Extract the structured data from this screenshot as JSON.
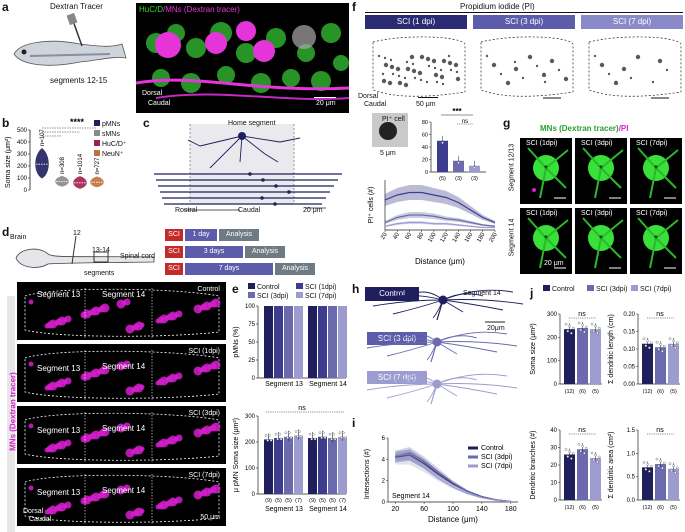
{
  "panels": {
    "a": {
      "letter": "a",
      "tracer": "Dextran Tracer",
      "segments": "segments 12-15",
      "micro_title_1": "HuC/D",
      "micro_title_2": "/MNs (Dextran tracer)",
      "dorsal": "Dorsal",
      "caudal": "Caudal",
      "scale": "20 μm"
    },
    "b": {
      "letter": "b",
      "ylabel": "Soma size (μm²)",
      "sig": "****",
      "n_labels": [
        "n=107",
        "n=308",
        "n=1014",
        "n=727"
      ],
      "legend": [
        "pMNs",
        "sMNs",
        "HuC/D⁺",
        "NeuN⁺"
      ],
      "ticks": [
        "0",
        "100",
        "200",
        "300",
        "400",
        "500"
      ]
    },
    "c": {
      "letter": "c",
      "home": "Home segment",
      "rostral": "Rostral",
      "caudal": "Caudal",
      "scale": "20 μm"
    },
    "d": {
      "letter": "d",
      "brain": "Brain",
      "seg12": "12",
      "seg1314": "13-14",
      "segments": "segments",
      "spinal": "Spinal cord",
      "rows": [
        {
          "sci": "SCI",
          "time": "1 day",
          "analysis": "Analysis"
        },
        {
          "sci": "SCI",
          "time": "3 days",
          "analysis": "Analysis"
        },
        {
          "sci": "SCI",
          "time": "7 days",
          "analysis": "Analysis"
        }
      ],
      "side_label": "MNs (Dextran tracer)",
      "images": [
        {
          "s13": "Segment 13",
          "s14": "Segment 14",
          "cond": "Control"
        },
        {
          "s13": "Segment 13",
          "s14": "Segment 14",
          "cond": "SCI (1dpi)"
        },
        {
          "s13": "Segment 13",
          "s14": "Segment 14",
          "cond": "SCI (3dpi)"
        },
        {
          "s13": "Segment 13",
          "s14": "Segment 14",
          "cond": "SCI (7dpi)"
        }
      ],
      "dorsal": "Dorsal",
      "caudal": "Caudal",
      "scale": "50 μm"
    },
    "e": {
      "letter": "e",
      "legend": [
        "Control",
        "SCI (1dpi)",
        "SCI (3dpi)",
        "SCI (7dpi)"
      ],
      "ylabel_top": "pMNs (%)",
      "ylabel_bot": "μ pMN Soma size (μm²)",
      "ns": "ns",
      "xcats": [
        "Segment 13",
        "Segment 14"
      ],
      "n_labels": [
        "(9)",
        "(5)",
        "(5)",
        "(7)",
        "(9)",
        "(5)",
        "(5)",
        "(7)"
      ],
      "ticks_top": [
        "0",
        "25",
        "50",
        "75",
        "100"
      ],
      "ticks_bot": [
        "0",
        "100",
        "200",
        "300"
      ]
    },
    "f": {
      "letter": "f",
      "title": "Propidium iodide (PI)",
      "headers": [
        "SCI (1 dpi)",
        "SCI (3 dpi)",
        "SCI (7 dpi)"
      ],
      "dorsal": "Dorsal",
      "caudal": "Caudal",
      "scale": "50 μm",
      "inset_label": "PI⁺ cell",
      "inset_scale": "5 μm",
      "sig": "***",
      "ns": "ns",
      "n_labels": [
        "(5)",
        "(3)",
        "(3)"
      ],
      "bar_ticks": [
        "0",
        "20",
        "40",
        "60",
        "80"
      ],
      "ylabel": "PI⁺ cells (#)",
      "xlabel": "Distance (μm)",
      "xticks": [
        "20",
        "40",
        "60",
        "80",
        "100",
        "120",
        "140",
        "160",
        "180",
        "200"
      ]
    },
    "g": {
      "letter": "g",
      "title_a": "MNs (Dextran tracer)",
      "title_b": "/PI",
      "rows": [
        "Segment 12/13",
        "Segment 14"
      ],
      "cols": [
        "SCI (1dpi)",
        "SCI (3dpi)",
        "SCI (7dpi)"
      ],
      "scale": "20 μm"
    },
    "h": {
      "letter": "h",
      "control": "Control",
      "seg": "Segment 14",
      "scale": "20μm",
      "sci3": "SCI (3 dpi)",
      "sci7": "SCI (7 dpi)"
    },
    "i": {
      "letter": "i",
      "ylabel": "Intersections (#)",
      "xlabel": "Distance (μm)",
      "seg": "Segment 14",
      "legend": [
        "Control",
        "SCI (3dpi)",
        "SCI (7dpi)"
      ],
      "xticks": [
        "20",
        "60",
        "100",
        "140",
        "180"
      ],
      "yticks": [
        "0",
        "2",
        "4",
        "6"
      ]
    },
    "j": {
      "letter": "j",
      "legend": [
        "Control",
        "SCI (3dpi)",
        "SCI (7dpi)"
      ],
      "ns": "ns",
      "plots": [
        {
          "ylabel": "Soma size (μm²)",
          "ticks": [
            "0",
            "100",
            "200",
            "300"
          ],
          "values": [
            235,
            240,
            235
          ],
          "ymax": 300
        },
        {
          "ylabel": "Σ dendritic length (cm)",
          "ticks": [
            "0.00",
            "0.05",
            "0.10",
            "0.15",
            "0.20"
          ],
          "values": [
            0.115,
            0.105,
            0.115
          ],
          "ymax": 0.2
        },
        {
          "ylabel": "Dendritic branches (#)",
          "ticks": [
            "0",
            "10",
            "20",
            "30",
            "40"
          ],
          "values": [
            26,
            29,
            24
          ],
          "ymax": 40
        },
        {
          "ylabel": "Σ dendritic area (cm²)",
          "ticks": [
            "0.0",
            "0.5",
            "1.0",
            "1.5"
          ],
          "values": [
            0.7,
            0.77,
            0.67
          ],
          "ymax": 1.5
        }
      ],
      "n_labels": [
        "(12)",
        "(6)",
        "(5)"
      ]
    }
  },
  "colors": {
    "ctrl": "#1f1f5e",
    "sci1": "#3d3d8f",
    "sci3": "#6a6aad",
    "sci7": "#9c9cd0",
    "magenta": "#e020d8",
    "green": "#33dd33",
    "orange": "#c0703a",
    "grey": "#8a8a8a"
  },
  "chart_data": [
    {
      "type": "bar",
      "title": "pMNs (%)",
      "categories": [
        "Segment 13",
        "Segment 14"
      ],
      "series": [
        {
          "name": "Control",
          "values": [
            100,
            100
          ]
        },
        {
          "name": "SCI (1dpi)",
          "values": [
            100,
            100
          ]
        },
        {
          "name": "SCI (3dpi)",
          "values": [
            100,
            100
          ]
        },
        {
          "name": "SCI (7dpi)",
          "values": [
            100,
            100
          ]
        }
      ],
      "ylim": [
        0,
        100
      ]
    },
    {
      "type": "bar",
      "title": "μ pMN Soma size (μm²)",
      "categories": [
        "Segment 13",
        "Segment 14"
      ],
      "series": [
        {
          "name": "Control",
          "values": [
            210,
            215
          ]
        },
        {
          "name": "SCI (1dpi)",
          "values": [
            215,
            220
          ]
        },
        {
          "name": "SCI (3dpi)",
          "values": [
            220,
            215
          ]
        },
        {
          "name": "SCI (7dpi)",
          "values": [
            225,
            220
          ]
        }
      ],
      "ylim": [
        0,
        300
      ]
    },
    {
      "type": "bar",
      "title": "PI⁺ cells",
      "categories": [
        "1dpi",
        "3dpi",
        "7dpi"
      ],
      "values": [
        50,
        18,
        10
      ],
      "ylim": [
        0,
        80
      ]
    },
    {
      "type": "line",
      "title": "PI⁺ cells (#) vs Distance",
      "x": [
        20,
        40,
        60,
        80,
        100,
        120,
        140,
        160,
        180,
        200
      ],
      "series": [
        {
          "name": "SCI (1dpi)",
          "values": [
            2.4,
            2.8,
            3.0,
            3.0,
            2.8,
            2.6,
            2.2,
            1.6,
            1.0,
            0.6
          ]
        },
        {
          "name": "SCI (3dpi)",
          "values": [
            0.6,
            1.0,
            1.2,
            1.2,
            1.1,
            0.9,
            0.8,
            0.6,
            0.4,
            0.3
          ]
        },
        {
          "name": "SCI (7dpi)",
          "values": [
            0.3,
            0.5,
            0.6,
            0.6,
            0.5,
            0.5,
            0.4,
            0.3,
            0.2,
            0.2
          ]
        }
      ],
      "ylim": [
        0,
        4
      ]
    },
    {
      "type": "line",
      "title": "Intersections",
      "x": [
        20,
        40,
        60,
        80,
        100,
        120,
        140,
        160,
        180
      ],
      "series": [
        {
          "name": "Control",
          "values": [
            4.2,
            4.4,
            3.6,
            2.6,
            1.7,
            1.0,
            0.5,
            0.2,
            0.05
          ]
        },
        {
          "name": "SCI (3dpi)",
          "values": [
            4.3,
            4.6,
            3.8,
            2.8,
            1.8,
            1.0,
            0.5,
            0.2,
            0.05
          ]
        },
        {
          "name": "SCI (7dpi)",
          "values": [
            4.0,
            4.0,
            3.2,
            2.2,
            1.4,
            0.8,
            0.4,
            0.15,
            0.03
          ]
        }
      ],
      "ylim": [
        0,
        6
      ]
    },
    {
      "type": "bar",
      "title": "Soma size (μm²)",
      "categories": [
        "Control",
        "SCI (3dpi)",
        "SCI (7dpi)"
      ],
      "values": [
        235,
        240,
        235
      ],
      "ylim": [
        0,
        300
      ]
    },
    {
      "type": "bar",
      "title": "Σ dendritic length (cm)",
      "categories": [
        "Control",
        "SCI (3dpi)",
        "SCI (7dpi)"
      ],
      "values": [
        0.115,
        0.105,
        0.115
      ],
      "ylim": [
        0,
        0.2
      ]
    },
    {
      "type": "bar",
      "title": "Dendritic branches (#)",
      "categories": [
        "Control",
        "SCI (3dpi)",
        "SCI (7dpi)"
      ],
      "values": [
        26,
        29,
        24
      ],
      "ylim": [
        0,
        40
      ]
    },
    {
      "type": "bar",
      "title": "Σ dendritic area (cm²)",
      "categories": [
        "Control",
        "SCI (3dpi)",
        "SCI (7dpi)"
      ],
      "values": [
        0.7,
        0.77,
        0.67
      ],
      "ylim": [
        0,
        1.5
      ]
    }
  ]
}
